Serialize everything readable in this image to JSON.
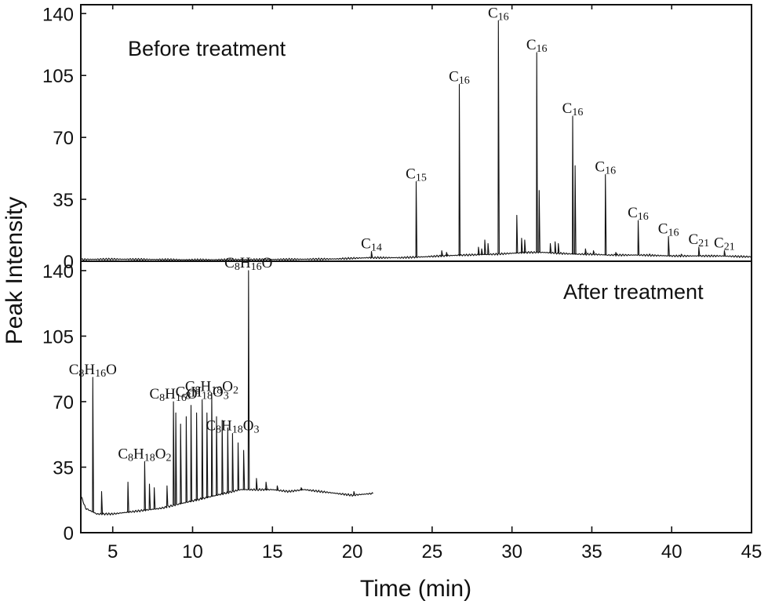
{
  "chart_data": {
    "type": "line",
    "xlabel": "Time (min)",
    "ylabel": "Peak Intensity",
    "xlim": [
      3,
      45
    ],
    "x_ticks": [
      5,
      10,
      15,
      20,
      25,
      30,
      35,
      40,
      45
    ],
    "panels": [
      {
        "title": "Before treatment",
        "ylim": [
          0,
          145
        ],
        "y_ticks": [
          0,
          35,
          70,
          105,
          140
        ],
        "baseline": [
          [
            3,
            1
          ],
          [
            5,
            1.2
          ],
          [
            10,
            0.8
          ],
          [
            15,
            1
          ],
          [
            19,
            1.3
          ],
          [
            21,
            2
          ],
          [
            23,
            2
          ],
          [
            24.5,
            2.5
          ],
          [
            25.5,
            3
          ],
          [
            27,
            3.5
          ],
          [
            29,
            4
          ],
          [
            31,
            5
          ],
          [
            32,
            5
          ],
          [
            33,
            4.5
          ],
          [
            34,
            4
          ],
          [
            35,
            4
          ],
          [
            36,
            3.5
          ],
          [
            38,
            3.5
          ],
          [
            40,
            3
          ],
          [
            43,
            3
          ],
          [
            45,
            2.5
          ]
        ],
        "peaks": [
          {
            "t": 21.2,
            "h": 5.5,
            "label": {
              "base": "C",
              "sub": "14"
            }
          },
          {
            "t": 24.0,
            "h": 45,
            "label": {
              "base": "C",
              "sub": "15"
            }
          },
          {
            "t": 26.7,
            "h": 100,
            "label": {
              "base": "C",
              "sub": "16"
            }
          },
          {
            "t": 29.15,
            "h": 136,
            "label": {
              "base": "C",
              "sub": "16"
            }
          },
          {
            "t": 31.55,
            "h": 118,
            "label": {
              "base": "C",
              "sub": "16"
            }
          },
          {
            "t": 33.8,
            "h": 82,
            "label": {
              "base": "C",
              "sub": "16"
            }
          },
          {
            "t": 35.85,
            "h": 49,
            "label": {
              "base": "C",
              "sub": "16"
            }
          },
          {
            "t": 37.9,
            "h": 23,
            "label": {
              "base": "C",
              "sub": "16"
            }
          },
          {
            "t": 39.8,
            "h": 14,
            "label": {
              "base": "C",
              "sub": "16"
            }
          },
          {
            "t": 41.7,
            "h": 8,
            "label": {
              "base": "C",
              "sub": "21"
            }
          },
          {
            "t": 43.3,
            "h": 6,
            "label": {
              "base": "C",
              "sub": "21"
            }
          },
          {
            "t": 25.6,
            "h": 6
          },
          {
            "t": 25.9,
            "h": 5
          },
          {
            "t": 27.9,
            "h": 8
          },
          {
            "t": 28.1,
            "h": 7
          },
          {
            "t": 28.3,
            "h": 12
          },
          {
            "t": 28.5,
            "h": 10
          },
          {
            "t": 30.3,
            "h": 26
          },
          {
            "t": 30.6,
            "h": 13
          },
          {
            "t": 30.8,
            "h": 12
          },
          {
            "t": 31.7,
            "h": 40
          },
          {
            "t": 32.4,
            "h": 10
          },
          {
            "t": 32.7,
            "h": 11
          },
          {
            "t": 32.9,
            "h": 10
          },
          {
            "t": 33.95,
            "h": 54
          },
          {
            "t": 34.6,
            "h": 7
          },
          {
            "t": 35.1,
            "h": 6
          },
          {
            "t": 36.5,
            "h": 5
          },
          {
            "t": 38.6,
            "h": 4
          },
          {
            "t": 40.6,
            "h": 4
          }
        ]
      },
      {
        "title": "After treatment",
        "ylim": [
          0,
          145
        ],
        "y_ticks": [
          0,
          35,
          70,
          105,
          140
        ],
        "baseline": [
          [
            3,
            20
          ],
          [
            3.3,
            13
          ],
          [
            4,
            10
          ],
          [
            5,
            10
          ],
          [
            6,
            11
          ],
          [
            7,
            12
          ],
          [
            8,
            13
          ],
          [
            9,
            15
          ],
          [
            10,
            17
          ],
          [
            11,
            19
          ],
          [
            12,
            21
          ],
          [
            13,
            23
          ],
          [
            14,
            23
          ],
          [
            15,
            23
          ],
          [
            16,
            22
          ],
          [
            17,
            23
          ],
          [
            18,
            22
          ],
          [
            19,
            21
          ],
          [
            20,
            20
          ],
          [
            21.3,
            21
          ]
        ],
        "peaks": [
          {
            "t": 3.75,
            "h": 83,
            "label": {
              "segments": [
                [
                  "C",
                  ""
                ],
                [
                  "8",
                  "sub"
                ],
                [
                  "H",
                  ""
                ],
                [
                  "16",
                  "sub"
                ],
                [
                  "O",
                  ""
                ]
              ]
            }
          },
          {
            "t": 7.0,
            "h": 38,
            "label": {
              "segments": [
                [
                  "C",
                  ""
                ],
                [
                  "8",
                  "sub"
                ],
                [
                  "H",
                  ""
                ],
                [
                  "18",
                  "sub"
                ],
                [
                  "O",
                  ""
                ],
                [
                  "2",
                  "sub"
                ]
              ]
            }
          },
          {
            "t": 8.8,
            "h": 70,
            "label": {
              "segments": [
                [
                  "C",
                  ""
                ],
                [
                  "8",
                  "sub"
                ],
                [
                  "H",
                  ""
                ],
                [
                  "16",
                  "sub"
                ],
                [
                  "O",
                  ""
                ]
              ]
            }
          },
          {
            "t": 10.6,
            "h": 71,
            "label": {
              "segments": [
                [
                  "C",
                  ""
                ],
                [
                  "8",
                  "sub"
                ],
                [
                  "H",
                  ""
                ],
                [
                  "18",
                  "sub"
                ],
                [
                  "O",
                  ""
                ],
                [
                  "3",
                  "sub"
                ]
              ]
            }
          },
          {
            "t": 11.2,
            "h": 74,
            "label": {
              "segments": [
                [
                  "C",
                  ""
                ],
                [
                  "8",
                  "sub"
                ],
                [
                  "H",
                  ""
                ],
                [
                  "18",
                  "sub"
                ],
                [
                  "O",
                  ""
                ],
                [
                  "2",
                  "sub"
                ]
              ]
            }
          },
          {
            "t": 12.5,
            "h": 53,
            "label": {
              "segments": [
                [
                  "C",
                  ""
                ],
                [
                  "8",
                  "sub"
                ],
                [
                  "H",
                  ""
                ],
                [
                  "18",
                  "sub"
                ],
                [
                  "O",
                  ""
                ],
                [
                  "3",
                  "sub"
                ]
              ]
            }
          },
          {
            "t": 13.5,
            "h": 140,
            "label": {
              "segments": [
                [
                  "C",
                  ""
                ],
                [
                  "8",
                  "sub"
                ],
                [
                  "H",
                  ""
                ],
                [
                  "16",
                  "sub"
                ],
                [
                  "O",
                  ""
                ]
              ]
            }
          },
          {
            "t": 4.3,
            "h": 22
          },
          {
            "t": 5.95,
            "h": 27
          },
          {
            "t": 7.3,
            "h": 26
          },
          {
            "t": 7.6,
            "h": 24
          },
          {
            "t": 8.4,
            "h": 25
          },
          {
            "t": 8.95,
            "h": 64
          },
          {
            "t": 9.25,
            "h": 58
          },
          {
            "t": 9.6,
            "h": 62
          },
          {
            "t": 9.9,
            "h": 68
          },
          {
            "t": 10.25,
            "h": 64
          },
          {
            "t": 10.9,
            "h": 64
          },
          {
            "t": 11.5,
            "h": 62
          },
          {
            "t": 11.85,
            "h": 60
          },
          {
            "t": 12.2,
            "h": 56
          },
          {
            "t": 12.85,
            "h": 48
          },
          {
            "t": 13.2,
            "h": 44
          },
          {
            "t": 14.0,
            "h": 29
          },
          {
            "t": 14.6,
            "h": 27
          },
          {
            "t": 15.3,
            "h": 25
          },
          {
            "t": 16.8,
            "h": 24
          },
          {
            "t": 20.1,
            "h": 22
          }
        ]
      }
    ]
  }
}
